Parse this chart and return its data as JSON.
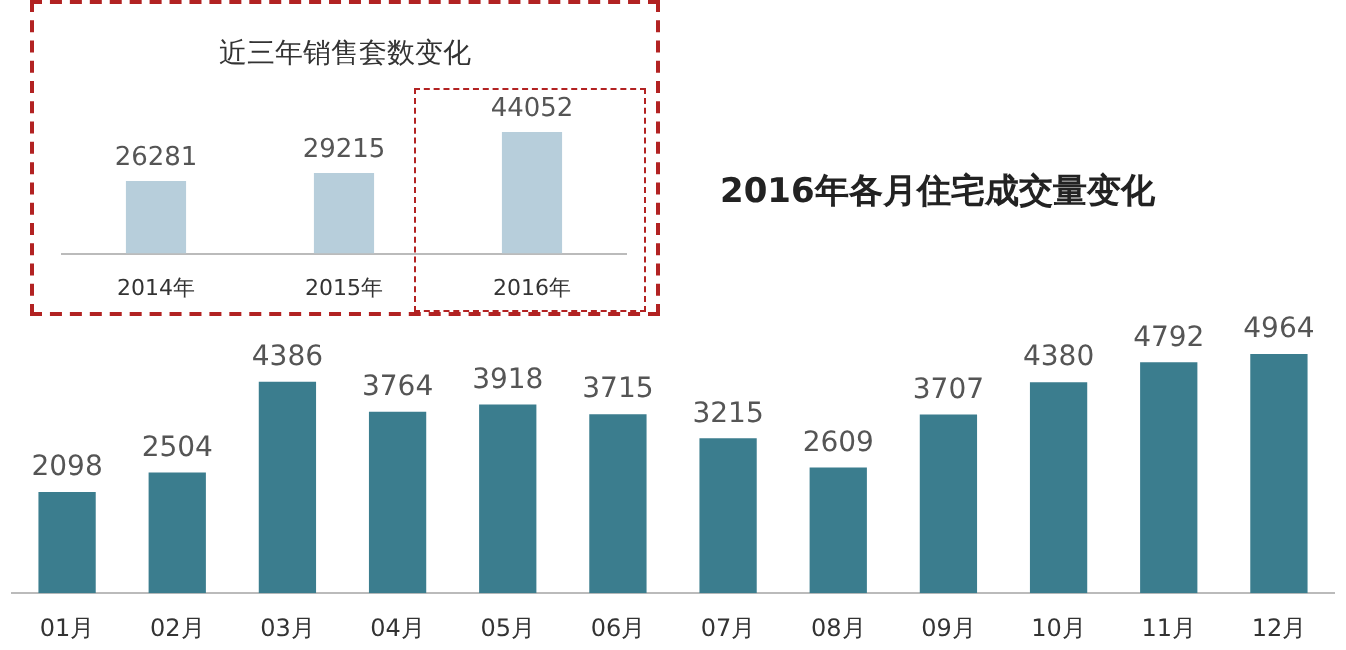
{
  "chart_data": [
    {
      "type": "bar",
      "title": "近三年销售套数变化",
      "categories": [
        "2014年",
        "2015年",
        "2016年"
      ],
      "values": [
        26281,
        29215,
        44052
      ],
      "color": "#b7cedb",
      "data_labels": true
    },
    {
      "type": "bar",
      "title": "2016年各月住宅成交量变化",
      "categories": [
        "01月",
        "02月",
        "03月",
        "04月",
        "05月",
        "06月",
        "07月",
        "08月",
        "09月",
        "10月",
        "11月",
        "12月"
      ],
      "values": [
        2098,
        2504,
        4386,
        3764,
        3918,
        3715,
        3215,
        2609,
        3707,
        4380,
        4792,
        4964
      ],
      "color": "#3b7d8e",
      "data_labels": true
    }
  ]
}
